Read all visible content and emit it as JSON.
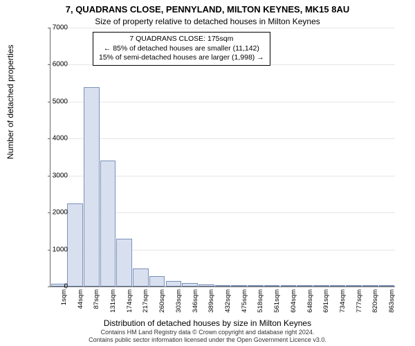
{
  "title_main": "7, QUADRANS CLOSE, PENNYLAND, MILTON KEYNES, MK15 8AU",
  "title_sub": "Size of property relative to detached houses in Milton Keynes",
  "infobox": {
    "line1": "7 QUADRANS CLOSE: 175sqm",
    "line2": "← 85% of detached houses are smaller (11,142)",
    "line3": "15% of semi-detached houses are larger (1,998) →"
  },
  "ylabel": "Number of detached properties",
  "xlabel": "Distribution of detached houses by size in Milton Keynes",
  "footer_line1": "Contains HM Land Registry data © Crown copyright and database right 2024.",
  "footer_line2": "Contains public sector information licensed under the Open Government Licence v3.0.",
  "chart": {
    "type": "histogram",
    "background_color": "#ffffff",
    "bar_fill": "#d8e0f0",
    "bar_border": "#7a8fb8",
    "axis_color": "#666666",
    "grid_color": "#e5e5e5",
    "ymin": 0,
    "ymax": 7000,
    "ytick_step": 1000,
    "xticks": [
      "1sqm",
      "44sqm",
      "87sqm",
      "131sqm",
      "174sqm",
      "217sqm",
      "260sqm",
      "303sqm",
      "346sqm",
      "389sqm",
      "432sqm",
      "475sqm",
      "518sqm",
      "561sqm",
      "604sqm",
      "648sqm",
      "691sqm",
      "734sqm",
      "777sqm",
      "820sqm",
      "863sqm"
    ],
    "values": [
      80,
      2250,
      5400,
      3400,
      1300,
      480,
      280,
      150,
      100,
      60,
      40,
      30,
      20,
      15,
      10,
      10,
      8,
      6,
      5,
      4,
      3
    ]
  }
}
